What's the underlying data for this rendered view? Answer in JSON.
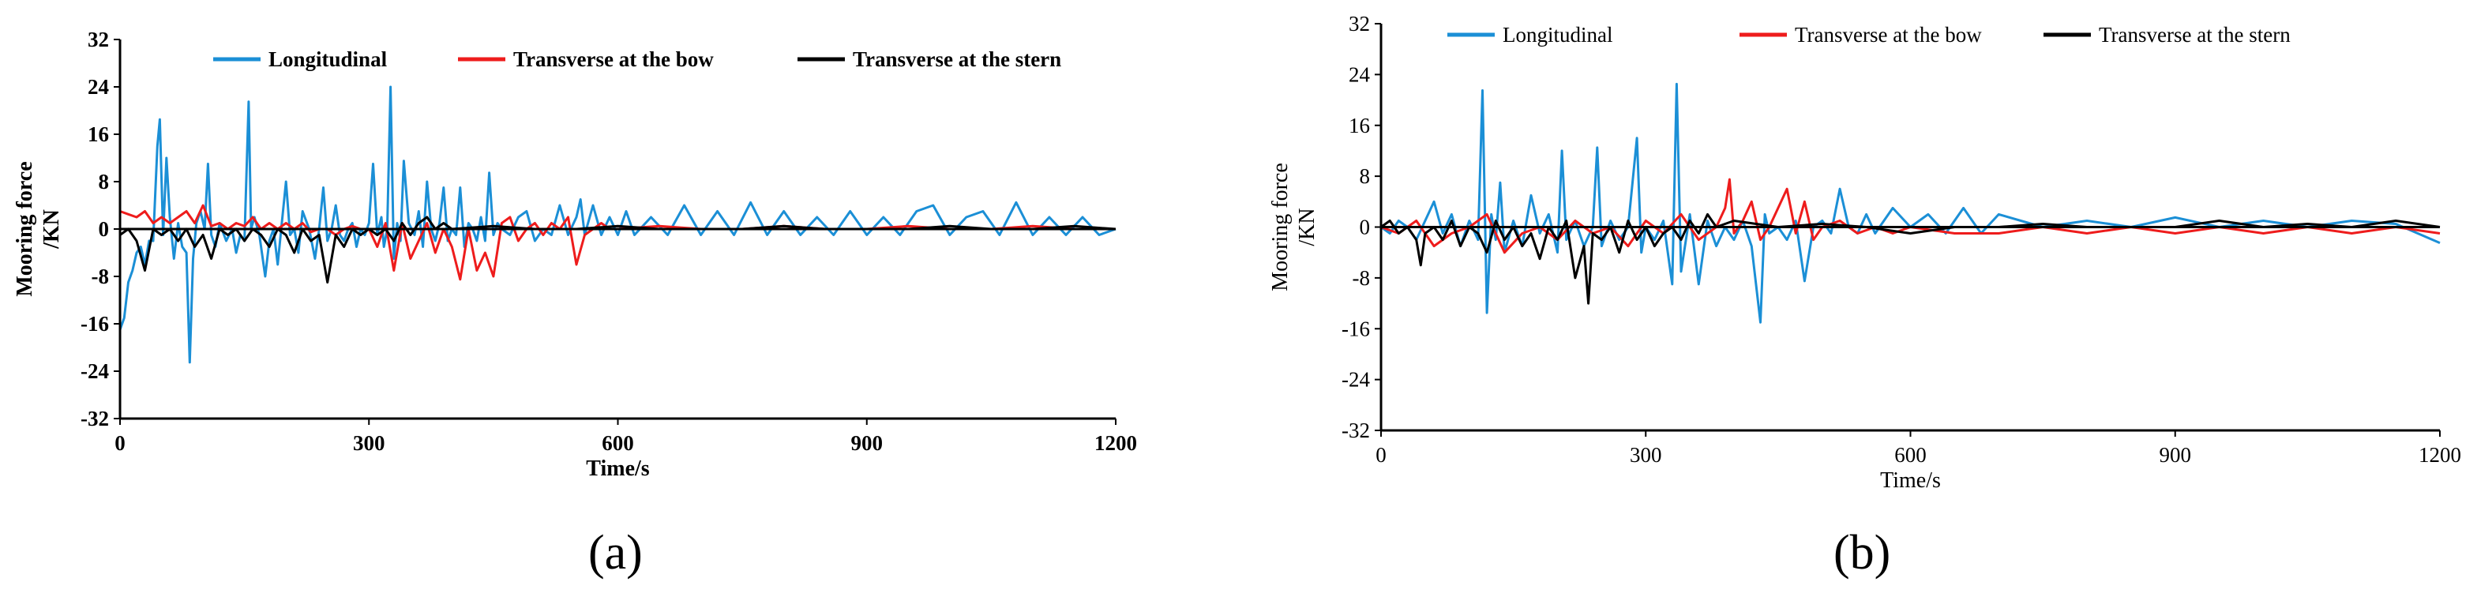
{
  "colors": {
    "longitudinal": "#1b8fd6",
    "bow": "#ee1c1c",
    "stern": "#000000"
  },
  "chart_data": [
    {
      "type": "line",
      "panel_label": "(a)",
      "xlabel": "Time/s",
      "ylabel": [
        "Mooring force",
        "/KN"
      ],
      "xlim": [
        0,
        1200
      ],
      "ylim": [
        -32,
        32
      ],
      "xticks": [
        "0",
        "300",
        "600",
        "900",
        "1200"
      ],
      "yticks": [
        "32",
        "24",
        "16",
        "8",
        "0",
        "-8",
        "-16",
        "-24",
        "-32"
      ],
      "legend_position": "top",
      "series": [
        {
          "name": "Longitudinal",
          "color": "#1b8fd6",
          "x": [
            0,
            5,
            10,
            15,
            20,
            25,
            30,
            35,
            40,
            45,
            48,
            52,
            56,
            60,
            65,
            70,
            75,
            80,
            84,
            88,
            92,
            97,
            102,
            106,
            110,
            115,
            120,
            128,
            135,
            140,
            145,
            150,
            155,
            158,
            162,
            168,
            175,
            180,
            185,
            190,
            195,
            200,
            205,
            210,
            215,
            220,
            228,
            235,
            240,
            245,
            250,
            255,
            260,
            265,
            270,
            275,
            280,
            285,
            290,
            295,
            300,
            305,
            310,
            315,
            318,
            322,
            326,
            330,
            334,
            338,
            342,
            348,
            355,
            360,
            365,
            370,
            375,
            380,
            385,
            390,
            395,
            400,
            405,
            410,
            415,
            420,
            425,
            430,
            435,
            440,
            445,
            450,
            455,
            460,
            470,
            480,
            490,
            500,
            510,
            520,
            530,
            540,
            550,
            555,
            560,
            570,
            580,
            590,
            600,
            610,
            620,
            640,
            660,
            680,
            700,
            720,
            740,
            760,
            780,
            800,
            820,
            840,
            860,
            880,
            900,
            920,
            940,
            960,
            980,
            1000,
            1020,
            1040,
            1060,
            1080,
            1100,
            1120,
            1140,
            1160,
            1180,
            1200
          ],
          "y": [
            -17,
            -15,
            -9,
            -7,
            -4,
            -3,
            -6,
            -2,
            -2,
            14,
            18.5,
            -1,
            12,
            2,
            -5,
            1,
            -3,
            -4,
            -22.5,
            -5,
            1,
            3,
            0,
            11,
            -1,
            -3,
            1,
            -2,
            0,
            -4,
            -1,
            -2,
            21.5,
            0,
            2,
            -1,
            -8,
            -2,
            0,
            -6,
            1,
            8,
            -1,
            0,
            -4,
            3,
            0,
            -5,
            0,
            7,
            -2,
            0,
            4,
            -1,
            -2,
            0,
            1,
            -3,
            0,
            -1,
            1,
            11,
            -1,
            2,
            -3,
            0,
            24,
            -5,
            1,
            -2,
            11.5,
            1,
            -1,
            3,
            -3,
            8,
            0,
            -2,
            1,
            7,
            -2,
            0,
            -1,
            7,
            -3,
            1,
            0,
            -2,
            2,
            -2,
            9.5,
            -1,
            1,
            0,
            -1,
            2,
            3,
            -2,
            0,
            -1,
            4,
            -1,
            2,
            5,
            -1,
            4,
            -1,
            2,
            -1,
            3,
            -1,
            2,
            -1,
            4,
            -1,
            3,
            -1,
            4.5,
            -1,
            3,
            -1,
            2,
            -1,
            3,
            -1,
            2,
            -1,
            3,
            4,
            -1,
            2,
            3,
            -1,
            4.5,
            -1,
            2,
            -1,
            2,
            -1,
            0
          ]
        },
        {
          "name": "Transverse at the bow",
          "color": "#ee1c1c",
          "x": [
            0,
            10,
            20,
            30,
            40,
            50,
            60,
            70,
            80,
            90,
            100,
            110,
            120,
            130,
            140,
            150,
            160,
            170,
            180,
            190,
            200,
            210,
            220,
            230,
            240,
            250,
            260,
            270,
            280,
            290,
            300,
            310,
            320,
            330,
            340,
            350,
            360,
            370,
            380,
            390,
            400,
            410,
            420,
            430,
            440,
            450,
            460,
            470,
            480,
            490,
            500,
            510,
            520,
            530,
            540,
            550,
            560,
            570,
            580,
            590,
            600,
            650,
            700,
            750,
            800,
            850,
            900,
            950,
            1000,
            1050,
            1100,
            1150,
            1200
          ],
          "y": [
            3,
            2.5,
            2,
            3,
            1,
            2,
            1,
            2,
            3,
            1,
            4,
            0.5,
            1,
            0,
            1,
            0.5,
            2,
            0,
            1,
            0,
            1,
            0,
            1,
            -0.5,
            0,
            0,
            -1,
            0,
            0.5,
            0,
            0,
            -3,
            1,
            -7,
            1,
            -5,
            -2,
            1,
            -4,
            0,
            -3,
            -8.5,
            0,
            -7,
            -4,
            -8,
            1,
            2,
            -2,
            0,
            1,
            -1,
            1,
            0,
            2,
            -6,
            -1,
            0,
            1,
            0,
            0,
            0.5,
            0,
            0,
            0.5,
            0,
            0,
            0.5,
            0,
            0,
            0.5,
            0,
            0
          ]
        },
        {
          "name": "Transverse at the stern",
          "color": "#000000",
          "x": [
            0,
            10,
            20,
            30,
            40,
            50,
            60,
            70,
            80,
            90,
            100,
            110,
            120,
            130,
            140,
            150,
            160,
            170,
            180,
            190,
            200,
            210,
            220,
            230,
            240,
            250,
            260,
            270,
            280,
            290,
            300,
            310,
            320,
            330,
            340,
            350,
            360,
            370,
            380,
            390,
            400,
            450,
            500,
            550,
            600,
            650,
            700,
            750,
            800,
            850,
            900,
            950,
            1000,
            1050,
            1100,
            1150,
            1200
          ],
          "y": [
            -1,
            0,
            -2,
            -7,
            0,
            -1,
            0,
            -2,
            0,
            -3,
            -1,
            -5,
            0,
            -1,
            0,
            -2,
            0,
            -1,
            -3,
            0,
            -1,
            -4,
            0,
            -2,
            -1,
            -9,
            -1,
            -3,
            0,
            -1,
            0,
            -1,
            0,
            -2,
            1,
            -1,
            1,
            2,
            0,
            1,
            0,
            0.5,
            0,
            0,
            0.5,
            0,
            0,
            0,
            0.5,
            0,
            0,
            0,
            0.5,
            0,
            0,
            0.5,
            0
          ]
        }
      ]
    },
    {
      "type": "line",
      "panel_label": "(b)",
      "xlabel": "Time/s",
      "ylabel": [
        "Mooring force",
        "/KN"
      ],
      "xlim": [
        0,
        1200
      ],
      "ylim": [
        -32,
        32
      ],
      "xticks": [
        "0",
        "300",
        "600",
        "900",
        "1200"
      ],
      "yticks": [
        "32",
        "24",
        "16",
        "8",
        "0",
        "-8",
        "-16",
        "-24",
        "-32"
      ],
      "legend_position": "top",
      "series": [
        {
          "name": "Longitudinal",
          "color": "#1b8fd6",
          "x": [
            0,
            10,
            20,
            30,
            40,
            50,
            60,
            70,
            80,
            90,
            100,
            110,
            115,
            120,
            125,
            130,
            135,
            140,
            150,
            160,
            170,
            180,
            190,
            200,
            205,
            210,
            220,
            230,
            240,
            245,
            250,
            260,
            270,
            280,
            290,
            295,
            300,
            310,
            320,
            330,
            335,
            340,
            350,
            360,
            370,
            380,
            390,
            400,
            410,
            420,
            430,
            435,
            440,
            450,
            460,
            470,
            480,
            490,
            500,
            510,
            520,
            530,
            540,
            550,
            560,
            580,
            600,
            620,
            640,
            660,
            680,
            700,
            750,
            800,
            850,
            900,
            950,
            1000,
            1050,
            1100,
            1150,
            1200
          ],
          "y": [
            0,
            -1,
            1,
            0,
            -2,
            1,
            4,
            -1,
            2,
            -3,
            1,
            -2,
            21.5,
            -13.5,
            2,
            -2,
            7,
            -4,
            1,
            -3,
            5,
            -1,
            2,
            -4,
            12,
            -2,
            1,
            -3,
            0,
            12.5,
            -3,
            1,
            -2,
            0,
            14,
            -4,
            0,
            -2,
            1,
            -9,
            22.5,
            -7,
            2,
            -9,
            1,
            -3,
            0,
            -2,
            1,
            -3,
            -15,
            2,
            -1,
            0,
            -2,
            1,
            -8.5,
            0,
            1,
            -1,
            6,
            0,
            -1,
            2,
            -1,
            3,
            0,
            2,
            -1,
            3,
            -1,
            2,
            0,
            1,
            0,
            1.5,
            0,
            1,
            0,
            1,
            0.5,
            -2.5
          ]
        },
        {
          "name": "Transverse at the bow",
          "color": "#ee1c1c",
          "x": [
            0,
            20,
            40,
            60,
            80,
            100,
            120,
            140,
            160,
            180,
            200,
            220,
            240,
            260,
            280,
            300,
            320,
            340,
            360,
            380,
            390,
            395,
            400,
            410,
            420,
            430,
            440,
            450,
            460,
            470,
            480,
            490,
            500,
            520,
            540,
            560,
            580,
            600,
            650,
            700,
            750,
            800,
            850,
            900,
            950,
            1000,
            1050,
            1100,
            1150,
            1200
          ],
          "y": [
            0,
            -1,
            1,
            -3,
            -1,
            0,
            2,
            -4,
            -1,
            0,
            -2,
            1,
            -1,
            0,
            -3,
            1,
            -1,
            2,
            -2,
            0,
            3,
            7.5,
            -1,
            1,
            4,
            -2,
            0,
            3,
            6,
            -1,
            4,
            -2,
            0,
            1,
            -1,
            0,
            -1,
            0,
            -1,
            -1,
            0,
            -1,
            0,
            -1,
            0,
            -1,
            0,
            -1,
            0,
            -1
          ]
        },
        {
          "name": "Transverse at the stern",
          "color": "#000000",
          "x": [
            0,
            10,
            20,
            30,
            40,
            45,
            50,
            60,
            70,
            80,
            90,
            100,
            110,
            120,
            130,
            140,
            150,
            160,
            170,
            180,
            190,
            200,
            210,
            220,
            230,
            235,
            240,
            250,
            260,
            270,
            280,
            290,
            300,
            310,
            320,
            330,
            340,
            350,
            360,
            370,
            380,
            400,
            450,
            500,
            550,
            600,
            650,
            700,
            750,
            800,
            850,
            900,
            950,
            1000,
            1050,
            1100,
            1150,
            1200
          ],
          "y": [
            0,
            1,
            -1,
            0,
            -2,
            -6,
            -1,
            0,
            -2,
            1,
            -3,
            0,
            -1,
            -4,
            1,
            -2,
            0,
            -3,
            -1,
            -5,
            0,
            -2,
            1,
            -8,
            -3,
            -12,
            -1,
            -2,
            0,
            -4,
            1,
            -2,
            0,
            -3,
            -1,
            0,
            -2,
            1,
            -1,
            2,
            0,
            1,
            0,
            0.5,
            0,
            -1,
            0,
            0,
            0.5,
            0,
            0,
            0,
            1,
            0,
            0.5,
            0,
            1,
            0
          ]
        }
      ]
    }
  ]
}
